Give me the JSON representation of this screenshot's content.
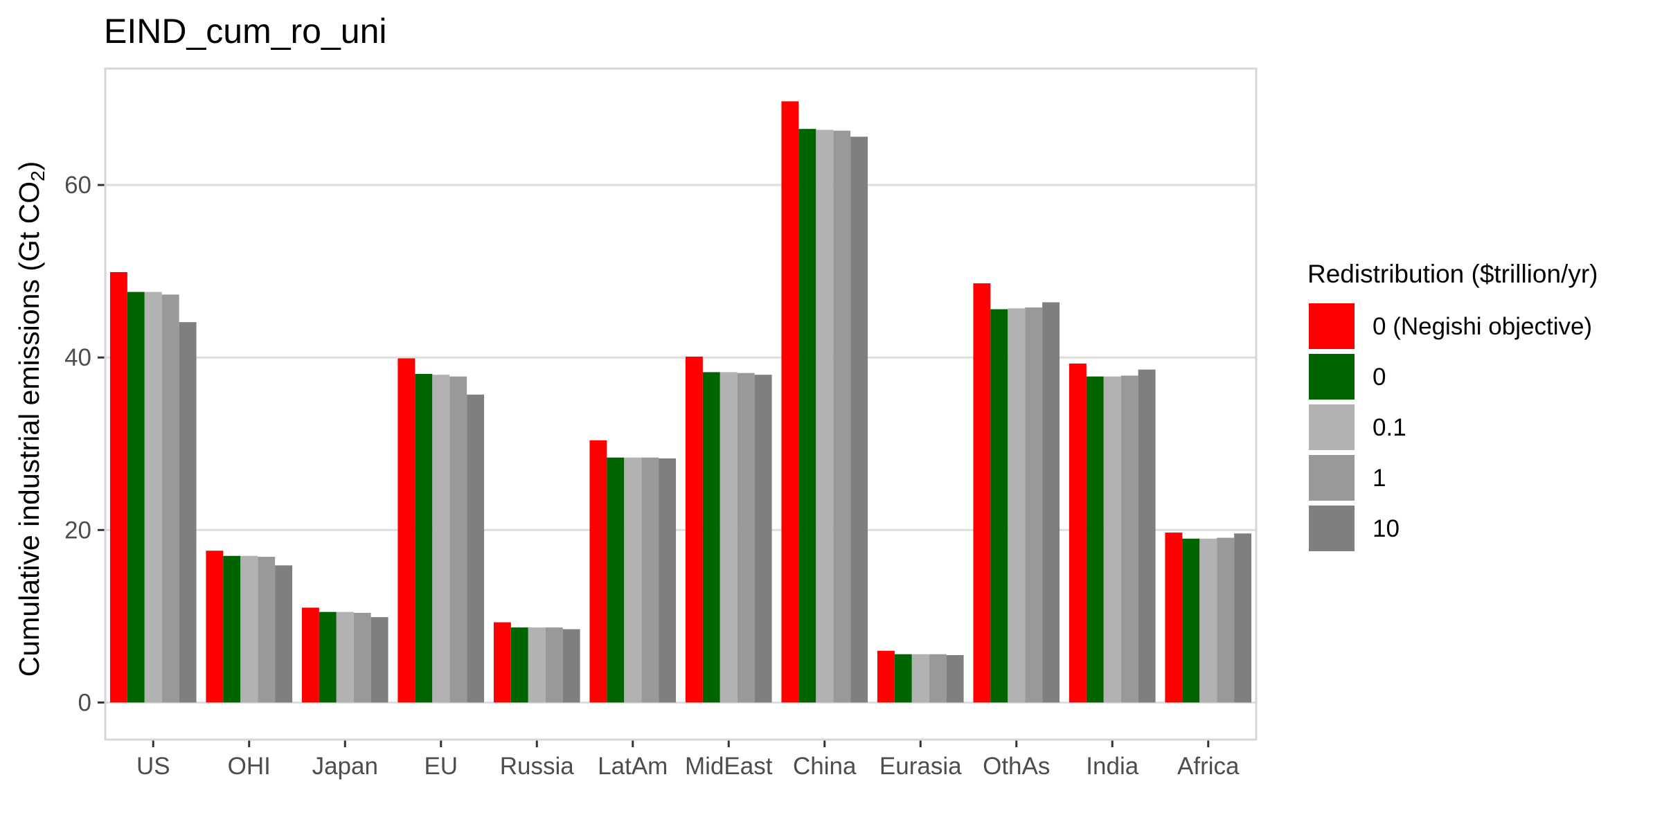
{
  "chart_data": {
    "type": "bar",
    "title": "EIND_cum_ro_uni",
    "ylabel_main": "Cumulative industrial emissions (Gt CO",
    "ylabel_sub": "2",
    "ylabel_close": ")",
    "xlabel": "",
    "ylim": [
      -4.3,
      73.5
    ],
    "yticks": [
      0,
      20,
      40,
      60
    ],
    "grid": true,
    "legend_position": "right",
    "legend_title": "Redistribution ($trillion/yr)",
    "categories": [
      "US",
      "OHI",
      "Japan",
      "EU",
      "Russia",
      "LatAm",
      "MidEast",
      "China",
      "Eurasia",
      "OthAs",
      "India",
      "Africa"
    ],
    "series": [
      {
        "name": "0 (Negishi objective)",
        "color": "#FF0000",
        "values": [
          49.9,
          17.6,
          11.0,
          39.9,
          9.3,
          30.4,
          40.1,
          69.7,
          6.0,
          48.6,
          39.3,
          19.7
        ]
      },
      {
        "name": "0",
        "color": "#006400",
        "values": [
          47.6,
          17.0,
          10.5,
          38.1,
          8.7,
          28.4,
          38.3,
          66.5,
          5.6,
          45.6,
          37.8,
          19.0
        ]
      },
      {
        "name": "0.1",
        "color": "#B2B2B2",
        "values": [
          47.6,
          17.0,
          10.5,
          38.0,
          8.7,
          28.4,
          38.3,
          66.4,
          5.6,
          45.7,
          37.8,
          19.0
        ]
      },
      {
        "name": "1",
        "color": "#999999",
        "values": [
          47.3,
          16.9,
          10.4,
          37.8,
          8.7,
          28.4,
          38.2,
          66.3,
          5.6,
          45.8,
          37.9,
          19.1
        ]
      },
      {
        "name": "10",
        "color": "#7F7F7F",
        "values": [
          44.1,
          15.9,
          9.9,
          35.7,
          8.5,
          28.3,
          38.0,
          65.6,
          5.5,
          46.4,
          38.6,
          19.6
        ]
      }
    ]
  }
}
